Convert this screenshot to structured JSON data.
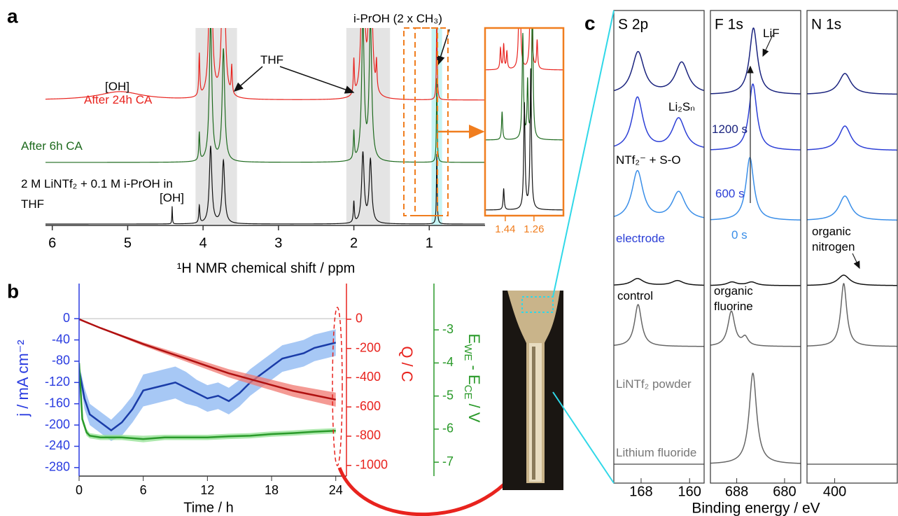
{
  "chart_data": [
    {
      "type": "spectrum",
      "label": "a",
      "xlabel": "¹H NMR chemical shift / ppm",
      "xlim": [
        6.09,
        0.26
      ],
      "xticks": [
        6,
        5,
        4,
        3,
        2,
        1
      ],
      "highlights": [
        {
          "range": [
            4.1,
            3.55
          ],
          "color": "#e4e4e4"
        },
        {
          "range": [
            2.1,
            1.52
          ],
          "color": "#e4e4e4"
        },
        {
          "range": [
            0.97,
            0.83
          ],
          "color": "#c6f4f4"
        }
      ],
      "series": [
        {
          "name": "After 24h CA",
          "color": "#e8231e",
          "x": [
            5.1,
            4.05,
            3.9,
            3.73,
            3.62,
            2.0,
            1.88,
            1.78,
            1.7,
            0.9
          ],
          "values": [
            12,
            60,
            300,
            300,
            40,
            50,
            300,
            300,
            40,
            130
          ],
          "widths": [
            0.35,
            0.008,
            0.02,
            0.02,
            0.008,
            0.008,
            0.02,
            0.02,
            0.008,
            0.006
          ]
        },
        {
          "name": "After 6h CA",
          "color": "#1e6a1e",
          "x": [
            4.05,
            3.9,
            3.73,
            2.0,
            1.88,
            1.78,
            0.9
          ],
          "values": [
            40,
            200,
            160,
            40,
            200,
            200,
            120
          ],
          "widths": [
            0.008,
            0.02,
            0.02,
            0.008,
            0.02,
            0.02,
            0.006
          ]
        },
        {
          "name": "2 M LiNTf₂ + 0.1 M i-PrOH in THF",
          "color": "#111111",
          "x": [
            4.41,
            4.05,
            3.9,
            3.73,
            2.0,
            1.88,
            1.78,
            0.9
          ],
          "values": [
            25,
            25,
            110,
            90,
            30,
            100,
            90,
            100
          ],
          "widths": [
            0.004,
            0.008,
            0.02,
            0.02,
            0.008,
            0.02,
            0.02,
            0.006
          ]
        }
      ],
      "annotations": [
        "[OH]",
        "THF",
        "i-PrOH (2 x CH₃)",
        "[OH]"
      ],
      "inset": {
        "color": "#f07d1e",
        "xlim": [
          1.567,
          1.075
        ],
        "xticks": [
          1.44,
          1.26
        ],
        "series": [
          {
            "x": [
              1.47,
              1.45,
              1.43,
              1.35,
              1.28,
              1.24
            ],
            "values": [
              30,
              35,
              25,
              200,
              200,
              40
            ],
            "widths": [
              0.004,
              0.004,
              0.004,
              0.005,
              0.005,
              0.004
            ]
          },
          {
            "x": [
              1.46,
              1.33,
              1.3,
              1.27
            ],
            "values": [
              40,
              150,
              80,
              200
            ],
            "widths": [
              0.004,
              0.005,
              0.004,
              0.005
            ]
          },
          {
            "x": [
              1.45,
              1.32,
              1.28
            ],
            "values": [
              30,
              150,
              200
            ],
            "widths": [
              0.004,
              0.005,
              0.005
            ]
          }
        ]
      }
    },
    {
      "type": "line",
      "label": "b",
      "xlabel": "Time / h",
      "xlim": [
        0,
        25
      ],
      "xticks": [
        0,
        6,
        12,
        18,
        24
      ],
      "ylabel": "j / mA cm⁻²",
      "ylim": [
        -296,
        66
      ],
      "yticks": [
        0,
        -40,
        -80,
        -120,
        -160,
        -200,
        -240,
        -280
      ],
      "y2label": "Q / C",
      "y2lim": [
        -1073,
        244
      ],
      "y2ticks": [
        0,
        -200,
        -400,
        -600,
        -800,
        -1000
      ],
      "y3label": [
        "E",
        "WE",
        " - E",
        "CE",
        " / V"
      ],
      "y3lim": [
        -7.42,
        -1.6
      ],
      "y3ticks": [
        -3,
        -4,
        -5,
        -6,
        -7
      ],
      "series": [
        {
          "color": "#1a3ca8",
          "band": "#8ab6f2",
          "x": [
            0,
            0.5,
            1,
            2,
            3,
            4,
            5,
            6,
            7,
            8,
            9,
            10,
            11,
            12,
            13,
            14,
            15,
            16,
            17,
            18,
            19,
            20,
            21,
            22,
            23,
            24
          ],
          "values": [
            -95,
            -150,
            -180,
            -195,
            -210,
            -195,
            -170,
            -135,
            -130,
            -125,
            -120,
            -130,
            -140,
            -150,
            -145,
            -155,
            -140,
            -120,
            -105,
            -90,
            -75,
            -70,
            -65,
            -55,
            -50,
            -45
          ],
          "errors": [
            10,
            20,
            20,
            20,
            20,
            25,
            25,
            30,
            30,
            30,
            30,
            30,
            25,
            25,
            25,
            25,
            25,
            25,
            25,
            25,
            25,
            25,
            25,
            25,
            25,
            25
          ]
        },
        {
          "axis": "y2",
          "color": "#b01010",
          "band": "#f07870",
          "x": [
            0,
            2,
            4,
            6,
            8,
            10,
            12,
            14,
            16,
            18,
            20,
            22,
            24
          ],
          "values": [
            0,
            -60,
            -115,
            -170,
            -220,
            -270,
            -320,
            -370,
            -410,
            -450,
            -490,
            -520,
            -550
          ],
          "errors": [
            0,
            4,
            8,
            12,
            16,
            20,
            24,
            28,
            32,
            36,
            40,
            44,
            48
          ]
        },
        {
          "axis": "y3",
          "color": "#2a9a2a",
          "band": "#90e090",
          "x": [
            0,
            0.3,
            0.7,
            1,
            2,
            4,
            6,
            8,
            10,
            12,
            14,
            16,
            18,
            20,
            22,
            24
          ],
          "values": [
            -4.0,
            -5.7,
            -6.1,
            -6.2,
            -6.25,
            -6.25,
            -6.3,
            -6.25,
            -6.25,
            -6.25,
            -6.22,
            -6.2,
            -6.15,
            -6.12,
            -6.08,
            -6.05
          ],
          "errors": [
            0.05,
            0.1,
            0.1,
            0.08,
            0.08,
            0.08,
            0.1,
            0.08,
            0.08,
            0.08,
            0.08,
            0.08,
            0.08,
            0.08,
            0.08,
            0.08
          ]
        }
      ]
    },
    {
      "type": "stack",
      "label": "c",
      "xlabel": "Binding energy / eV",
      "rows": [
        {
          "color": "#1a237e"
        },
        {
          "color": "#2c3fd6"
        },
        {
          "color": "#3a8ee8"
        },
        {
          "color": "#111111"
        },
        {
          "color": "#666666"
        },
        {
          "color": "#666666"
        }
      ],
      "panels": [
        {
          "title": "S 2p",
          "xlim": [
            172.5,
            157.6
          ],
          "xticks": [
            168,
            160
          ],
          "peaks": [
            {
              "x": [
                168.5,
                161.3
              ],
              "values": [
                60,
                45
              ],
              "widths": [
                1.2,
                1.3
              ]
            },
            {
              "x": [
                168.6,
                161.8
              ],
              "values": [
                75,
                45
              ],
              "widths": [
                1.1,
                1.3
              ]
            },
            {
              "x": [
                168.6,
                161.8
              ],
              "values": [
                70,
                40
              ],
              "widths": [
                1.1,
                1.3
              ]
            },
            {
              "x": [
                168.6,
                162
              ],
              "values": [
                10,
                7
              ],
              "widths": [
                1.2,
                1.2
              ]
            },
            {
              "x": [
                168.5
              ],
              "values": [
                60
              ],
              "widths": [
                0.7
              ]
            },
            {
              "x": [],
              "values": [],
              "widths": []
            }
          ]
        },
        {
          "title": "F 1s",
          "xlim": [
            692.4,
            677.3
          ],
          "xticks": [
            688,
            680
          ],
          "peaks": [
            {
              "x": [
                685.2
              ],
              "values": [
                95
              ],
              "widths": [
                0.8
              ]
            },
            {
              "x": [
                685.3
              ],
              "values": [
                95
              ],
              "widths": [
                0.8
              ]
            },
            {
              "x": [
                685.8
              ],
              "values": [
                90
              ],
              "widths": [
                0.8
              ]
            },
            {
              "x": [
                688.8,
                685.5
              ],
              "values": [
                5,
                5
              ],
              "widths": [
                1.0,
                1.0
              ]
            },
            {
              "x": [
                688.9,
                686.6
              ],
              "values": [
                50,
                12
              ],
              "widths": [
                0.7,
                0.6
              ]
            },
            {
              "x": [
                685.3
              ],
              "values": [
                130
              ],
              "widths": [
                0.75
              ]
            }
          ]
        },
        {
          "title": "N 1s",
          "xlim": [
            404.6,
            389.6
          ],
          "xticks": [
            400
          ],
          "peaks": [
            {
              "x": [
                398.3
              ],
              "values": [
                30
              ],
              "widths": [
                1.2
              ]
            },
            {
              "x": [
                398.3
              ],
              "values": [
                35
              ],
              "widths": [
                1.2
              ]
            },
            {
              "x": [
                398.3
              ],
              "values": [
                35
              ],
              "widths": [
                1.2
              ]
            },
            {
              "x": [
                398.5
              ],
              "values": [
                15
              ],
              "widths": [
                1.2
              ]
            },
            {
              "x": [
                398.5
              ],
              "values": [
                90
              ],
              "widths": [
                0.6
              ]
            },
            {
              "x": [],
              "values": [],
              "widths": []
            }
          ]
        }
      ],
      "annotations": [
        "LiF",
        "Li₂Sₙ",
        "1200 s",
        "NTf₂⁻ + S-O",
        "600 s",
        "electrode",
        "0 s",
        "control",
        "organic fluorine",
        "organic nitrogen",
        "LiNTf₂ powder",
        "Lithium fluoride"
      ]
    }
  ]
}
